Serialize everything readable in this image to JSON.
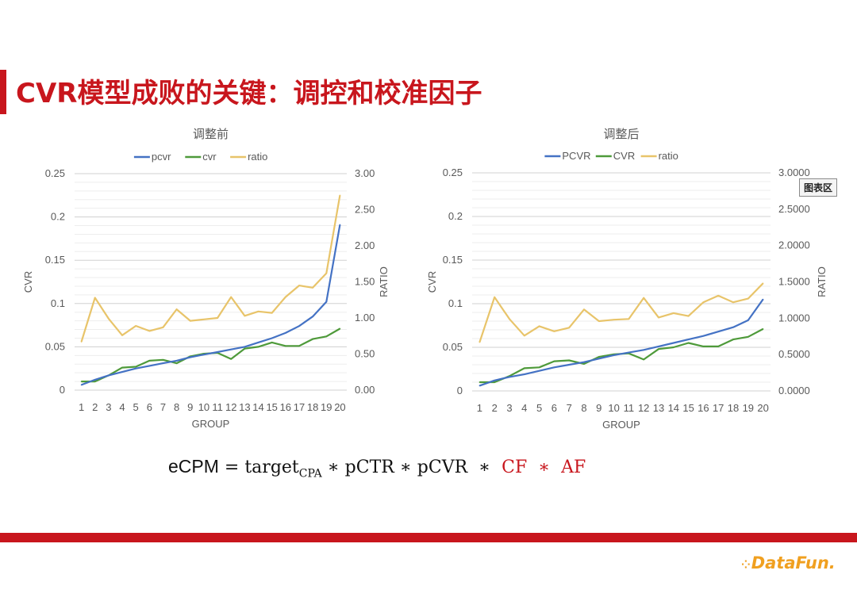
{
  "slide": {
    "title": "CVR模型成败的关键：调控和校准因子",
    "tooltip": "图表区",
    "formula": {
      "ecpm": "eCPM",
      "eq": "=",
      "target": "target",
      "sub": "CPA",
      "p1": "∗ pCTR ∗ pCVR",
      "star1": "∗",
      "cf": "CF",
      "star2": "∗",
      "af": "AF"
    },
    "logo": "DataFun.",
    "colors": {
      "accent": "#c8161d",
      "pcvr": "#4472c4",
      "cvr": "#4e9a3a",
      "ratio": "#e8c46a",
      "logo": "#f0a020"
    }
  },
  "chart_data": [
    {
      "type": "line",
      "title": "调整前",
      "categories": [
        "1",
        "2",
        "3",
        "4",
        "5",
        "6",
        "7",
        "8",
        "9",
        "10",
        "11",
        "12",
        "13",
        "14",
        "15",
        "16",
        "17",
        "18",
        "19",
        "20"
      ],
      "xlabel": "GROUP",
      "ylabel": "CVR",
      "y2label": "RATIO",
      "ylim": [
        0,
        0.25
      ],
      "y2lim": [
        0,
        3.0
      ],
      "yticks": [
        "0",
        "0.05",
        "0.1",
        "0.15",
        "0.2",
        "0.25"
      ],
      "y2ticks": [
        "0.00",
        "0.50",
        "1.00",
        "1.50",
        "2.00",
        "2.50",
        "3.00"
      ],
      "legend_position": "top",
      "grid": true,
      "series": [
        {
          "name": "pcvr",
          "axis": "left",
          "color": "#4472c4",
          "values": [
            0.006,
            0.012,
            0.017,
            0.021,
            0.025,
            0.028,
            0.031,
            0.034,
            0.038,
            0.041,
            0.044,
            0.047,
            0.05,
            0.055,
            0.06,
            0.066,
            0.074,
            0.085,
            0.102,
            0.191
          ]
        },
        {
          "name": "cvr",
          "axis": "left",
          "color": "#4e9a3a",
          "values": [
            0.01,
            0.01,
            0.017,
            0.026,
            0.027,
            0.034,
            0.035,
            0.031,
            0.039,
            0.042,
            0.043,
            0.036,
            0.048,
            0.05,
            0.055,
            0.051,
            0.051,
            0.059,
            0.062,
            0.071
          ]
        },
        {
          "name": "ratio",
          "axis": "right",
          "color": "#e8c46a",
          "values": [
            0.67,
            1.28,
            0.99,
            0.76,
            0.89,
            0.82,
            0.87,
            1.12,
            0.96,
            0.98,
            1.0,
            1.29,
            1.03,
            1.09,
            1.07,
            1.29,
            1.45,
            1.42,
            1.62,
            2.7
          ]
        }
      ]
    },
    {
      "type": "line",
      "title": "调整后",
      "categories": [
        "1",
        "2",
        "3",
        "4",
        "5",
        "6",
        "7",
        "8",
        "9",
        "10",
        "11",
        "12",
        "13",
        "14",
        "15",
        "16",
        "17",
        "18",
        "19",
        "20"
      ],
      "xlabel": "GROUP",
      "ylabel": "CVR",
      "y2label": "RATIO",
      "ylim": [
        0,
        0.25
      ],
      "y2lim": [
        0,
        3.0
      ],
      "yticks": [
        "0",
        "0.05",
        "0.1",
        "0.15",
        "0.2",
        "0.25"
      ],
      "y2ticks": [
        "0.0000",
        "0.5000",
        "1.0000",
        "1.5000",
        "2.0000",
        "2.5000",
        "3.0000"
      ],
      "legend_position": "top",
      "grid": true,
      "series": [
        {
          "name": "PCVR",
          "axis": "left",
          "color": "#4472c4",
          "values": [
            0.006,
            0.012,
            0.016,
            0.019,
            0.023,
            0.027,
            0.03,
            0.033,
            0.037,
            0.041,
            0.044,
            0.047,
            0.051,
            0.055,
            0.059,
            0.063,
            0.068,
            0.073,
            0.081,
            0.105
          ]
        },
        {
          "name": "CVR",
          "axis": "left",
          "color": "#4e9a3a",
          "values": [
            0.01,
            0.01,
            0.017,
            0.026,
            0.027,
            0.034,
            0.035,
            0.031,
            0.039,
            0.042,
            0.043,
            0.036,
            0.048,
            0.05,
            0.055,
            0.051,
            0.051,
            0.059,
            0.062,
            0.071
          ]
        },
        {
          "name": "ratio",
          "axis": "right",
          "color": "#e8c46a",
          "values": [
            0.67,
            1.29,
            0.99,
            0.76,
            0.89,
            0.82,
            0.87,
            1.12,
            0.96,
            0.98,
            0.99,
            1.28,
            1.01,
            1.07,
            1.03,
            1.22,
            1.31,
            1.22,
            1.27,
            1.48
          ]
        }
      ]
    }
  ]
}
